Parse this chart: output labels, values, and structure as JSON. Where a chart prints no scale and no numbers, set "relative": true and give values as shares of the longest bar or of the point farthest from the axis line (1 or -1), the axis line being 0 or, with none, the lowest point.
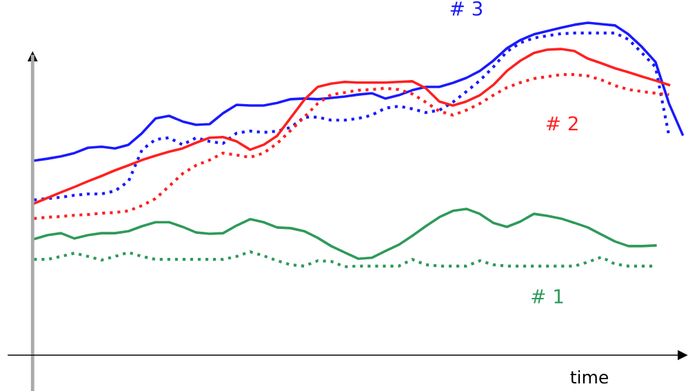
{
  "chart_data": {
    "type": "line",
    "relative": true,
    "xlabel": "time",
    "grid": false,
    "legend": false,
    "marker": "none",
    "categories": [
      null,
      null,
      null,
      null,
      null,
      null,
      null,
      null,
      null,
      null,
      null,
      null,
      null,
      null,
      null,
      null,
      null,
      null,
      null,
      null,
      null,
      null,
      null,
      null,
      null,
      null,
      null,
      null,
      null,
      null,
      null,
      null,
      null,
      null,
      null,
      null,
      null,
      null,
      null,
      null,
      null,
      null,
      null,
      null,
      null,
      null,
      null,
      null,
      null
    ],
    "series": [
      {
        "name": "# 3",
        "color": "#1a1aff",
        "line_style": "solid",
        "values": [
          0.585,
          0.591,
          0.598,
          0.608,
          0.624,
          0.627,
          0.622,
          0.633,
          0.668,
          0.712,
          0.72,
          0.703,
          0.693,
          0.695,
          0.728,
          0.753,
          0.751,
          0.751,
          0.759,
          0.77,
          0.772,
          0.77,
          0.774,
          0.778,
          0.784,
          0.788,
          0.772,
          0.782,
          0.797,
          0.807,
          0.807,
          0.819,
          0.834,
          0.855,
          0.886,
          0.923,
          0.948,
          0.965,
          0.975,
          0.985,
          0.994,
          1,
          0.996,
          0.992,
          0.965,
          0.927,
          0.882,
          0.757,
          0.664
        ]
      },
      {
        "color": "#1a1aff",
        "line_style": "dotted",
        "values": [
          0.467,
          0.471,
          0.475,
          0.481,
          0.485,
          0.485,
          0.494,
          0.523,
          0.618,
          0.649,
          0.654,
          0.633,
          0.654,
          0.643,
          0.637,
          0.668,
          0.674,
          0.67,
          0.674,
          0.685,
          0.716,
          0.716,
          0.707,
          0.707,
          0.712,
          0.722,
          0.743,
          0.749,
          0.741,
          0.73,
          0.737,
          0.761,
          0.793,
          0.826,
          0.867,
          0.913,
          0.94,
          0.954,
          0.961,
          0.967,
          0.969,
          0.969,
          0.969,
          0.969,
          0.95,
          0.909,
          0.867,
          0.66,
          null
        ]
      },
      {
        "name": "# 2",
        "color": "#ff2020",
        "line_style": "solid",
        "values": [
          0.456,
          0.473,
          0.49,
          0.506,
          0.523,
          0.539,
          0.556,
          0.571,
          0.587,
          0.6,
          0.612,
          0.622,
          0.639,
          0.654,
          0.656,
          0.643,
          0.618,
          0.633,
          0.66,
          0.714,
          0.768,
          0.807,
          0.817,
          0.822,
          0.82,
          0.82,
          0.82,
          0.822,
          0.824,
          0.803,
          0.763,
          0.751,
          0.763,
          0.782,
          0.813,
          0.855,
          0.886,
          0.909,
          0.919,
          0.921,
          0.915,
          0.892,
          0.878,
          0.863,
          0.851,
          0.838,
          0.826,
          0.813,
          null
        ]
      },
      {
        "color": "#ff2020",
        "line_style": "dotted",
        "values": [
          0.411,
          0.415,
          0.417,
          0.421,
          0.423,
          0.427,
          0.429,
          0.434,
          0.45,
          0.471,
          0.508,
          0.546,
          0.571,
          0.587,
          0.608,
          0.602,
          0.595,
          0.608,
          0.637,
          0.676,
          0.716,
          0.757,
          0.784,
          0.79,
          0.797,
          0.799,
          0.803,
          0.799,
          0.786,
          0.761,
          0.734,
          0.722,
          0.737,
          0.757,
          0.782,
          0.805,
          0.82,
          0.832,
          0.838,
          0.844,
          0.844,
          0.84,
          0.828,
          0.811,
          0.799,
          0.793,
          0.788,
          0.784,
          null
        ]
      },
      {
        "name": "# 1",
        "color": "#2e9a5a",
        "line_style": "solid",
        "values": [
          0.349,
          0.361,
          0.367,
          0.351,
          0.361,
          0.367,
          0.367,
          0.373,
          0.388,
          0.4,
          0.4,
          0.386,
          0.369,
          0.365,
          0.367,
          0.39,
          0.409,
          0.4,
          0.384,
          0.382,
          0.373,
          0.353,
          0.328,
          0.309,
          0.29,
          0.293,
          0.313,
          0.332,
          0.359,
          0.388,
          0.415,
          0.434,
          0.44,
          0.425,
          0.398,
          0.386,
          0.402,
          0.425,
          0.419,
          0.411,
          0.398,
          0.384,
          0.363,
          0.342,
          0.328,
          0.328,
          0.33,
          null,
          null
        ]
      },
      {
        "color": "#2e9a5a",
        "line_style": "dotted",
        "values": [
          0.288,
          0.288,
          0.297,
          0.307,
          0.297,
          0.286,
          0.297,
          0.309,
          0.297,
          0.288,
          0.288,
          0.288,
          0.288,
          0.288,
          0.288,
          0.297,
          0.311,
          0.299,
          0.284,
          0.272,
          0.268,
          0.284,
          0.282,
          0.266,
          0.268,
          0.268,
          0.268,
          0.268,
          0.288,
          0.272,
          0.268,
          0.268,
          0.268,
          0.284,
          0.272,
          0.268,
          0.268,
          0.268,
          0.268,
          0.268,
          0.268,
          0.28,
          0.295,
          0.274,
          0.268,
          0.268,
          0.268,
          null,
          null
        ]
      }
    ]
  }
}
